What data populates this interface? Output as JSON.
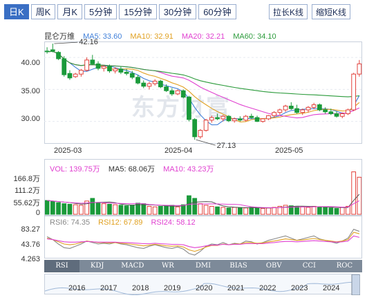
{
  "tabs": [
    {
      "label": "日K",
      "active": true
    },
    {
      "label": "周K",
      "active": false
    },
    {
      "label": "月K",
      "active": false
    },
    {
      "label": "5分钟",
      "active": false
    },
    {
      "label": "15分钟",
      "active": false
    },
    {
      "label": "30分钟",
      "active": false
    },
    {
      "label": "60分钟",
      "active": false
    }
  ],
  "toolbar": {
    "stretch_label": "拉长K线",
    "shrink_label": "缩短K线"
  },
  "stock_name": "昆仑万维",
  "ma_legend": [
    {
      "label": "MA5: 33.60",
      "color": "#3f7fd9"
    },
    {
      "label": "MA10: 32.91",
      "color": "#e0a020"
    },
    {
      "label": "MA20: 32.21",
      "color": "#e040d0"
    },
    {
      "label": "MA60: 34.10",
      "color": "#2a9a3a"
    }
  ],
  "vol_legend": [
    {
      "label": "VOL: 139.75万",
      "color": "#e040d0"
    },
    {
      "label": "MA5: 68.06万",
      "color": "#333333"
    },
    {
      "label": "MA10: 43.23万",
      "color": "#e040d0"
    }
  ],
  "rsi_legend": [
    {
      "label": "RSI6: 74.35",
      "color": "#888888"
    },
    {
      "label": "RSI12: 67.89",
      "color": "#e0a020"
    },
    {
      "label": "RSI24: 58.12",
      "color": "#e040d0"
    }
  ],
  "watermark": "东方财富",
  "indicator_tabs": [
    "RSI",
    "KDJ",
    "MACD",
    "WR",
    "DMI",
    "BIAS",
    "OBV",
    "CCI",
    "ROC"
  ],
  "timeline_years": [
    "2016",
    "2017",
    "2018",
    "2019",
    "2020",
    "2021",
    "2022",
    "2023",
    "2024"
  ],
  "colors": {
    "up": "#e2403a",
    "down": "#1a9a3a",
    "accent": "#3a6fc4"
  },
  "chart_data": [
    {
      "type": "candlestick",
      "title": "",
      "y_ticks": [
        "40.00",
        "35.00",
        "30.00"
      ],
      "ylim": [
        26.5,
        42.5
      ],
      "x_ticks": [
        "2025-03",
        "2025-04",
        "2025-05"
      ],
      "annotations": [
        "42.16",
        "27.13"
      ],
      "candles": [
        {
          "o": 41.0,
          "h": 41.6,
          "l": 40.6,
          "c": 40.9
        },
        {
          "o": 41.2,
          "h": 42.16,
          "l": 40.8,
          "c": 41.0
        },
        {
          "o": 40.8,
          "h": 41.0,
          "l": 39.6,
          "c": 39.8
        },
        {
          "o": 39.8,
          "h": 40.2,
          "l": 37.0,
          "c": 37.3
        },
        {
          "o": 37.5,
          "h": 38.0,
          "l": 36.5,
          "c": 36.8
        },
        {
          "o": 37.0,
          "h": 37.6,
          "l": 36.8,
          "c": 37.4
        },
        {
          "o": 37.4,
          "h": 38.2,
          "l": 37.0,
          "c": 38.0
        },
        {
          "o": 38.0,
          "h": 40.0,
          "l": 37.8,
          "c": 39.6
        },
        {
          "o": 39.6,
          "h": 40.4,
          "l": 38.8,
          "c": 39.0
        },
        {
          "o": 39.0,
          "h": 39.4,
          "l": 38.0,
          "c": 38.3
        },
        {
          "o": 38.3,
          "h": 38.8,
          "l": 37.8,
          "c": 38.6
        },
        {
          "o": 38.6,
          "h": 38.9,
          "l": 37.6,
          "c": 37.9
        },
        {
          "o": 37.9,
          "h": 38.5,
          "l": 37.5,
          "c": 38.2
        },
        {
          "o": 38.2,
          "h": 38.6,
          "l": 37.4,
          "c": 37.7
        },
        {
          "o": 37.7,
          "h": 38.2,
          "l": 37.2,
          "c": 37.5
        },
        {
          "o": 37.5,
          "h": 37.9,
          "l": 36.6,
          "c": 36.9
        },
        {
          "o": 36.9,
          "h": 37.3,
          "l": 35.8,
          "c": 36.0
        },
        {
          "o": 36.0,
          "h": 36.4,
          "l": 35.2,
          "c": 35.5
        },
        {
          "o": 35.5,
          "h": 36.2,
          "l": 35.0,
          "c": 35.9
        },
        {
          "o": 35.9,
          "h": 36.6,
          "l": 35.6,
          "c": 36.3
        },
        {
          "o": 36.3,
          "h": 36.5,
          "l": 35.2,
          "c": 35.4
        },
        {
          "o": 35.4,
          "h": 35.8,
          "l": 34.6,
          "c": 34.8
        },
        {
          "o": 34.8,
          "h": 35.2,
          "l": 34.0,
          "c": 34.3
        },
        {
          "o": 34.3,
          "h": 35.0,
          "l": 34.1,
          "c": 34.8
        },
        {
          "o": 34.8,
          "h": 35.0,
          "l": 33.6,
          "c": 33.8
        },
        {
          "o": 33.8,
          "h": 34.0,
          "l": 30.0,
          "c": 30.3
        },
        {
          "o": 30.3,
          "h": 30.5,
          "l": 27.13,
          "c": 27.6
        },
        {
          "o": 27.6,
          "h": 28.8,
          "l": 27.3,
          "c": 28.6
        },
        {
          "o": 28.6,
          "h": 30.4,
          "l": 28.4,
          "c": 30.2
        },
        {
          "o": 30.2,
          "h": 30.9,
          "l": 29.8,
          "c": 30.6
        },
        {
          "o": 30.6,
          "h": 31.2,
          "l": 30.2,
          "c": 30.4
        },
        {
          "o": 30.4,
          "h": 31.0,
          "l": 30.0,
          "c": 30.8
        },
        {
          "o": 30.8,
          "h": 31.0,
          "l": 29.9,
          "c": 30.1
        },
        {
          "o": 30.1,
          "h": 30.6,
          "l": 29.8,
          "c": 30.4
        },
        {
          "o": 30.4,
          "h": 30.8,
          "l": 30.0,
          "c": 30.2
        },
        {
          "o": 30.2,
          "h": 31.0,
          "l": 30.0,
          "c": 30.8
        },
        {
          "o": 30.8,
          "h": 31.2,
          "l": 30.4,
          "c": 30.6
        },
        {
          "o": 30.6,
          "h": 30.9,
          "l": 29.9,
          "c": 30.0
        },
        {
          "o": 30.0,
          "h": 30.5,
          "l": 29.8,
          "c": 30.4
        },
        {
          "o": 30.4,
          "h": 31.0,
          "l": 30.2,
          "c": 30.9
        },
        {
          "o": 30.9,
          "h": 31.6,
          "l": 30.6,
          "c": 31.4
        },
        {
          "o": 31.4,
          "h": 32.0,
          "l": 31.0,
          "c": 31.8
        },
        {
          "o": 31.8,
          "h": 32.6,
          "l": 31.5,
          "c": 32.4
        },
        {
          "o": 32.4,
          "h": 33.0,
          "l": 31.8,
          "c": 32.0
        },
        {
          "o": 32.0,
          "h": 32.6,
          "l": 31.2,
          "c": 31.4
        },
        {
          "o": 31.4,
          "h": 32.0,
          "l": 31.0,
          "c": 31.8
        },
        {
          "o": 31.8,
          "h": 32.4,
          "l": 31.4,
          "c": 32.2
        },
        {
          "o": 32.2,
          "h": 32.9,
          "l": 31.9,
          "c": 32.6
        },
        {
          "o": 32.6,
          "h": 32.8,
          "l": 31.6,
          "c": 31.8
        },
        {
          "o": 31.8,
          "h": 32.2,
          "l": 31.2,
          "c": 31.5
        },
        {
          "o": 31.5,
          "h": 32.0,
          "l": 31.0,
          "c": 31.2
        },
        {
          "o": 31.2,
          "h": 31.6,
          "l": 30.6,
          "c": 30.8
        },
        {
          "o": 30.8,
          "h": 31.4,
          "l": 30.5,
          "c": 31.2
        },
        {
          "o": 31.2,
          "h": 32.0,
          "l": 31.0,
          "c": 31.8
        },
        {
          "o": 31.8,
          "h": 37.6,
          "l": 31.6,
          "c": 37.4
        },
        {
          "o": 37.4,
          "h": 39.6,
          "l": 37.0,
          "c": 39.0
        }
      ],
      "ma5_color": "#3f7fd9",
      "ma10_color": "#e0a020",
      "ma20_color": "#e040d0",
      "ma60_color": "#2a9a3a"
    },
    {
      "type": "bar",
      "title": "",
      "y_ticks": [
        "166.8万",
        "111.2万",
        "55.62万",
        "0"
      ],
      "ylim": [
        0,
        166.8
      ],
      "values": [
        52,
        48,
        44,
        40,
        38,
        36,
        34,
        50,
        60,
        44,
        40,
        38,
        36,
        34,
        32,
        34,
        42,
        40,
        30,
        28,
        30,
        32,
        34,
        28,
        36,
        70,
        60,
        40,
        34,
        30,
        28,
        26,
        24,
        26,
        25,
        24,
        26,
        24,
        22,
        24,
        26,
        30,
        34,
        32,
        30,
        28,
        26,
        30,
        28,
        26,
        24,
        22,
        26,
        30,
        160,
        139.75
      ]
    },
    {
      "type": "line",
      "title": "",
      "y_ticks": [
        "83.27",
        "43.76",
        "4.263"
      ],
      "ylim": [
        4.263,
        83.27
      ],
      "series": [
        {
          "name": "RSI6",
          "color": "#888888",
          "values": [
            60,
            52,
            40,
            30,
            28,
            34,
            40,
            48,
            44,
            40,
            42,
            40,
            44,
            40,
            38,
            34,
            30,
            28,
            34,
            38,
            34,
            30,
            28,
            32,
            26,
            14,
            10,
            20,
            34,
            40,
            38,
            44,
            38,
            42,
            40,
            48,
            46,
            40,
            44,
            50,
            54,
            58,
            62,
            56,
            50,
            54,
            58,
            62,
            54,
            50,
            46,
            42,
            48,
            56,
            80,
            74.35
          ]
        },
        {
          "name": "RSI12",
          "color": "#e0a020",
          "values": [
            56,
            52,
            46,
            40,
            38,
            40,
            44,
            48,
            46,
            44,
            44,
            43,
            44,
            42,
            41,
            39,
            37,
            35,
            37,
            39,
            37,
            35,
            34,
            35,
            32,
            24,
            20,
            25,
            32,
            36,
            36,
            40,
            38,
            40,
            40,
            44,
            44,
            42,
            43,
            46,
            48,
            51,
            54,
            52,
            50,
            51,
            53,
            55,
            52,
            50,
            48,
            46,
            48,
            52,
            72,
            67.89
          ]
        },
        {
          "name": "RSI24",
          "color": "#e040d0",
          "values": [
            54,
            52,
            49,
            46,
            45,
            45,
            46,
            47,
            46,
            45,
            45,
            45,
            45,
            44,
            44,
            43,
            42,
            41,
            41,
            42,
            41,
            40,
            39,
            39,
            38,
            33,
            30,
            32,
            35,
            37,
            37,
            39,
            38,
            39,
            39,
            41,
            41,
            41,
            41,
            43,
            44,
            46,
            47,
            47,
            46,
            47,
            48,
            49,
            48,
            47,
            46,
            45,
            46,
            48,
            62,
            58.12
          ]
        }
      ]
    }
  ]
}
